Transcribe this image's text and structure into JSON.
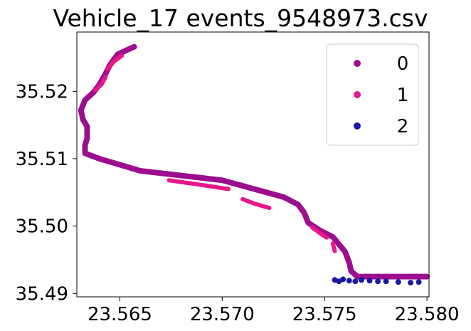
{
  "chart_data": {
    "type": "scatter",
    "title": "Vehicle_17 events_9548973.csv",
    "xlabel": "",
    "ylabel": "",
    "xlim": [
      23.5629,
      23.5801
    ],
    "ylim": [
      35.4895,
      35.5288
    ],
    "xticks": [
      {
        "value": 23.565,
        "label": "23.565"
      },
      {
        "value": 23.57,
        "label": "23.570"
      },
      {
        "value": 23.575,
        "label": "23.575"
      },
      {
        "value": 23.58,
        "label": "23.580"
      }
    ],
    "yticks": [
      {
        "value": 35.49,
        "label": "35.49"
      },
      {
        "value": 35.5,
        "label": "35.50"
      },
      {
        "value": 35.51,
        "label": "35.51"
      },
      {
        "value": 35.52,
        "label": "35.52"
      }
    ],
    "grid": false,
    "legend_position": "top-right",
    "series": [
      {
        "name": "0",
        "color": "#9b0f8f",
        "route": [
          [
            23.5657,
            35.5266
          ],
          [
            23.5654,
            35.5262
          ],
          [
            23.5649,
            35.5255
          ],
          [
            23.5647,
            35.5247
          ],
          [
            23.5645,
            35.5238
          ],
          [
            23.5643,
            35.5226
          ],
          [
            23.564,
            35.521
          ],
          [
            23.5637,
            35.5198
          ],
          [
            23.5633,
            35.5187
          ],
          [
            23.5631,
            35.5172
          ],
          [
            23.5632,
            35.5158
          ],
          [
            23.5634,
            35.5148
          ],
          [
            23.5634,
            35.513
          ],
          [
            23.5633,
            35.512
          ],
          [
            23.5633,
            35.5108
          ],
          [
            23.564,
            35.51
          ],
          [
            23.566,
            35.5082
          ],
          [
            23.57,
            35.5068
          ],
          [
            23.573,
            35.5043
          ],
          [
            23.5737,
            35.5032
          ],
          [
            23.574,
            35.502
          ],
          [
            23.5742,
            35.5005
          ],
          [
            23.5748,
            35.4993
          ],
          [
            23.5754,
            35.4984
          ],
          [
            23.576,
            35.4962
          ],
          [
            23.5762,
            35.4946
          ],
          [
            23.5763,
            35.4933
          ],
          [
            23.5766,
            35.4925
          ],
          [
            23.5775,
            35.4925
          ],
          [
            23.58,
            35.4925
          ]
        ]
      },
      {
        "name": "1",
        "color": "#e8178b",
        "segments": [
          [
            [
              23.5651,
              35.5253
            ],
            [
              23.5647,
              35.5244
            ],
            [
              23.5644,
              35.5233
            ]
          ],
          [
            [
              23.5643,
              35.5221
            ],
            [
              23.5641,
              35.521
            ],
            [
              23.5638,
              35.5202
            ]
          ],
          [
            [
              23.5674,
              35.5068
            ],
            [
              23.569,
              35.5061
            ],
            [
              23.5703,
              35.5055
            ]
          ],
          [
            [
              23.571,
              35.504
            ],
            [
              23.5716,
              35.5033
            ],
            [
              23.5723,
              35.5027
            ]
          ],
          [
            [
              23.5744,
              35.4998
            ],
            [
              23.5748,
              35.4989
            ],
            [
              23.5751,
              35.4983
            ]
          ],
          [
            [
              23.5754,
              35.4974
            ],
            [
              23.5755,
              35.4963
            ]
          ]
        ]
      },
      {
        "name": "2",
        "color": "#1a1aa0",
        "points": [
          [
            23.5755,
            35.492
          ],
          [
            23.5757,
            35.4918
          ],
          [
            23.5759,
            35.4921
          ],
          [
            23.5762,
            35.4919
          ],
          [
            23.5765,
            35.4918
          ],
          [
            23.5768,
            35.492
          ],
          [
            23.5772,
            35.4919
          ],
          [
            23.5776,
            35.4918
          ],
          [
            23.578,
            35.4918
          ],
          [
            23.5786,
            35.4917
          ],
          [
            23.5792,
            35.4916
          ],
          [
            23.5796,
            35.4917
          ]
        ]
      }
    ]
  }
}
